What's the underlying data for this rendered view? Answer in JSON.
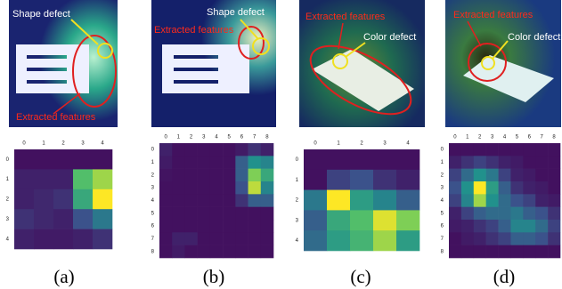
{
  "panels": [
    {
      "label": "(a)",
      "annotations": [
        "Shape defect",
        "Extracted features"
      ],
      "heatmap": {
        "colormap": "viridis",
        "ticks": [
          0,
          1,
          2,
          3,
          4
        ],
        "values": [
          [
            0.05,
            0.05,
            0.05,
            0.05,
            0.05
          ],
          [
            0.1,
            0.1,
            0.1,
            0.7,
            0.85
          ],
          [
            0.1,
            0.12,
            0.15,
            0.6,
            1.0
          ],
          [
            0.15,
            0.12,
            0.1,
            0.25,
            0.4
          ],
          [
            0.1,
            0.08,
            0.08,
            0.1,
            0.15
          ]
        ]
      }
    },
    {
      "label": "(b)",
      "annotations": [
        "Shape defect",
        "Extracted features"
      ],
      "heatmap": {
        "colormap": "viridis",
        "ticks": [
          0,
          1,
          2,
          3,
          4,
          5,
          6,
          7,
          8
        ],
        "values": [
          [
            0.1,
            0.05,
            0.05,
            0.05,
            0.05,
            0.05,
            0.08,
            0.15,
            0.1
          ],
          [
            0.08,
            0.05,
            0.05,
            0.05,
            0.05,
            0.05,
            0.3,
            0.5,
            0.45
          ],
          [
            0.06,
            0.05,
            0.05,
            0.05,
            0.05,
            0.05,
            0.3,
            0.8,
            0.6
          ],
          [
            0.05,
            0.05,
            0.05,
            0.05,
            0.05,
            0.05,
            0.25,
            0.9,
            0.45
          ],
          [
            0.05,
            0.05,
            0.05,
            0.05,
            0.05,
            0.05,
            0.15,
            0.3,
            0.3
          ],
          [
            0.05,
            0.05,
            0.05,
            0.05,
            0.05,
            0.05,
            0.05,
            0.05,
            0.05
          ],
          [
            0.05,
            0.05,
            0.05,
            0.05,
            0.05,
            0.05,
            0.05,
            0.05,
            0.05
          ],
          [
            0.05,
            0.1,
            0.1,
            0.05,
            0.05,
            0.05,
            0.05,
            0.05,
            0.05
          ],
          [
            0.05,
            0.08,
            0.05,
            0.05,
            0.05,
            0.05,
            0.05,
            0.05,
            0.05
          ]
        ]
      }
    },
    {
      "label": "(c)",
      "annotations": [
        "Extracted features",
        "Color defect"
      ],
      "heatmap": {
        "colormap": "viridis",
        "ticks": [
          0,
          1,
          2,
          3,
          4
        ],
        "values": [
          [
            0.05,
            0.05,
            0.05,
            0.05,
            0.05
          ],
          [
            0.05,
            0.2,
            0.25,
            0.15,
            0.1
          ],
          [
            0.4,
            1.0,
            0.55,
            0.45,
            0.3
          ],
          [
            0.3,
            0.6,
            0.7,
            0.95,
            0.8
          ],
          [
            0.35,
            0.55,
            0.65,
            0.85,
            0.55
          ]
        ]
      }
    },
    {
      "label": "(d)",
      "annotations": [
        "Extracted features",
        "Color defect"
      ],
      "heatmap": {
        "colormap": "viridis",
        "ticks": [
          0,
          1,
          2,
          3,
          4,
          5,
          6,
          7,
          8
        ],
        "values": [
          [
            0.05,
            0.05,
            0.05,
            0.05,
            0.05,
            0.05,
            0.05,
            0.05,
            0.05
          ],
          [
            0.1,
            0.15,
            0.2,
            0.15,
            0.1,
            0.08,
            0.05,
            0.05,
            0.05
          ],
          [
            0.2,
            0.35,
            0.5,
            0.4,
            0.2,
            0.1,
            0.08,
            0.05,
            0.05
          ],
          [
            0.25,
            0.5,
            1.0,
            0.55,
            0.3,
            0.15,
            0.1,
            0.08,
            0.05
          ],
          [
            0.2,
            0.45,
            0.85,
            0.5,
            0.35,
            0.25,
            0.2,
            0.1,
            0.08
          ],
          [
            0.1,
            0.2,
            0.3,
            0.35,
            0.35,
            0.4,
            0.3,
            0.25,
            0.15
          ],
          [
            0.08,
            0.1,
            0.15,
            0.2,
            0.3,
            0.45,
            0.45,
            0.35,
            0.2
          ],
          [
            0.05,
            0.08,
            0.1,
            0.15,
            0.2,
            0.3,
            0.3,
            0.25,
            0.15
          ],
          [
            0.05,
            0.05,
            0.05,
            0.05,
            0.05,
            0.05,
            0.05,
            0.05,
            0.05
          ]
        ]
      }
    }
  ]
}
